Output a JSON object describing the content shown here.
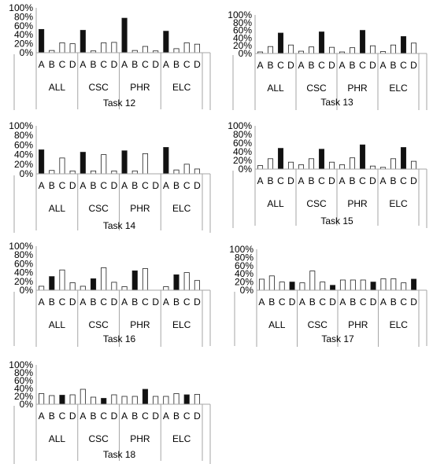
{
  "chart_data": [
    {
      "type": "bar",
      "title": "Task 12",
      "groups": [
        "ALL",
        "CSC",
        "PHR",
        "ELC"
      ],
      "categories": [
        "A",
        "B",
        "C",
        "D"
      ],
      "yticks": [
        "0%",
        "20%",
        "40%",
        "60%",
        "80%",
        "100%"
      ],
      "ylim": [
        0,
        100
      ],
      "values": [
        [
          52,
          5,
          22,
          20
        ],
        [
          50,
          4,
          22,
          23
        ],
        [
          77,
          5,
          14,
          4
        ],
        [
          48,
          9,
          22,
          19
        ]
      ],
      "highlight": [
        [
          0
        ],
        [
          0
        ],
        [
          0
        ],
        [
          0
        ]
      ]
    },
    {
      "type": "bar",
      "title": "Task 13",
      "groups": [
        "ALL",
        "CSC",
        "PHR",
        "ELC"
      ],
      "categories": [
        "A",
        "B",
        "C",
        "D"
      ],
      "yticks": [
        "0%",
        "20%",
        "40%",
        "60%",
        "80%",
        "100%"
      ],
      "ylim": [
        0,
        100
      ],
      "values": [
        [
          4,
          18,
          53,
          22
        ],
        [
          6,
          17,
          56,
          16
        ],
        [
          4,
          15,
          60,
          20
        ],
        [
          5,
          22,
          44,
          27
        ]
      ],
      "highlight": [
        [
          2
        ],
        [
          2
        ],
        [
          2
        ],
        [
          2
        ]
      ]
    },
    {
      "type": "bar",
      "title": "Task 14",
      "groups": [
        "ALL",
        "CSC",
        "PHR",
        "ELC"
      ],
      "categories": [
        "A",
        "B",
        "C",
        "D"
      ],
      "yticks": [
        "0%",
        "20%",
        "40%",
        "60%",
        "80%",
        "100%"
      ],
      "ylim": [
        0,
        100
      ],
      "values": [
        [
          50,
          7,
          33,
          6
        ],
        [
          45,
          6,
          40,
          6
        ],
        [
          48,
          6,
          42,
          0
        ],
        [
          55,
          8,
          20,
          10
        ]
      ],
      "highlight": [
        [
          0
        ],
        [
          0
        ],
        [
          0
        ],
        [
          0
        ]
      ]
    },
    {
      "type": "bar",
      "title": "Task 15",
      "groups": [
        "ALL",
        "CSC",
        "PHR",
        "ELC"
      ],
      "categories": [
        "A",
        "B",
        "C",
        "D"
      ],
      "yticks": [
        "0%",
        "20%",
        "40%",
        "60%",
        "80%",
        "100%"
      ],
      "ylim": [
        0,
        100
      ],
      "values": [
        [
          8,
          24,
          48,
          16
        ],
        [
          10,
          24,
          46,
          16
        ],
        [
          10,
          26,
          56,
          7
        ],
        [
          4,
          24,
          50,
          18
        ]
      ],
      "highlight": [
        [
          2
        ],
        [
          2
        ],
        [
          2
        ],
        [
          2
        ]
      ]
    },
    {
      "type": "bar",
      "title": "Task 16",
      "groups": [
        "ALL",
        "CSC",
        "PHR",
        "ELC"
      ],
      "categories": [
        "A",
        "B",
        "C",
        "D"
      ],
      "yticks": [
        "0%",
        "20%",
        "40%",
        "60%",
        "80%",
        "100%"
      ],
      "ylim": [
        0,
        100
      ],
      "values": [
        [
          9,
          31,
          46,
          17
        ],
        [
          9,
          26,
          51,
          18
        ],
        [
          8,
          44,
          49,
          0
        ],
        [
          8,
          35,
          40,
          22
        ]
      ],
      "highlight": [
        [
          1
        ],
        [
          1
        ],
        [
          1
        ],
        [
          1
        ]
      ]
    },
    {
      "type": "bar",
      "title": "Task 17",
      "groups": [
        "ALL",
        "CSC",
        "PHR",
        "ELC"
      ],
      "categories": [
        "A",
        "B",
        "C",
        "D"
      ],
      "yticks": [
        "0%",
        "20%",
        "40%",
        "60%",
        "80%",
        "100%"
      ],
      "ylim": [
        0,
        100
      ],
      "values": [
        [
          27,
          35,
          20,
          20
        ],
        [
          18,
          47,
          20,
          12
        ],
        [
          25,
          25,
          25,
          20
        ],
        [
          28,
          28,
          18,
          27
        ]
      ],
      "highlight": [
        [
          3
        ],
        [
          3
        ],
        [
          3
        ],
        [
          3
        ]
      ]
    },
    {
      "type": "bar",
      "title": "Task 18",
      "groups": [
        "ALL",
        "CSC",
        "PHR",
        "ELC"
      ],
      "categories": [
        "A",
        "B",
        "C",
        "D"
      ],
      "yticks": [
        "0%",
        "20%",
        "40%",
        "60%",
        "80%",
        "100%"
      ],
      "ylim": [
        0,
        100
      ],
      "values": [
        [
          27,
          22,
          23,
          24
        ],
        [
          38,
          18,
          15,
          24
        ],
        [
          20,
          20,
          38,
          20
        ],
        [
          20,
          27,
          24,
          25
        ]
      ],
      "highlight": [
        [
          2
        ],
        [
          2
        ],
        [
          2
        ],
        [
          2
        ]
      ]
    }
  ],
  "colors": {
    "highlight_fill": "#111111",
    "bar_fill": "#ffffff",
    "bar_stroke": "#222222",
    "axis": "#a6a6a6"
  }
}
